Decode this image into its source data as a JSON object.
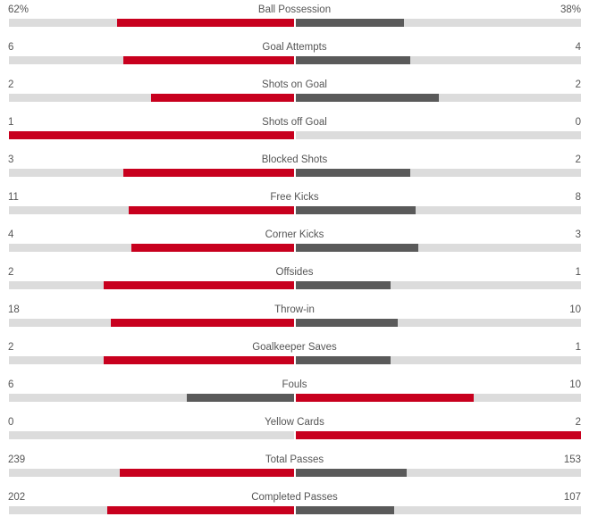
{
  "colors": {
    "leader": "#c8001e",
    "trailer": "#5a5a5a",
    "track": "#dcdcdc"
  },
  "stats": [
    {
      "name": "Ball Possession",
      "home": "62%",
      "away": "38%",
      "home_share": 0.62,
      "away_share": 0.38
    },
    {
      "name": "Goal Attempts",
      "home": "6",
      "away": "4",
      "home_share": 0.6,
      "away_share": 0.4
    },
    {
      "name": "Shots on Goal",
      "home": "2",
      "away": "2",
      "home_share": 0.5,
      "away_share": 0.5
    },
    {
      "name": "Shots off Goal",
      "home": "1",
      "away": "0",
      "home_share": 1.0,
      "away_share": 0.0
    },
    {
      "name": "Blocked Shots",
      "home": "3",
      "away": "2",
      "home_share": 0.6,
      "away_share": 0.4
    },
    {
      "name": "Free Kicks",
      "home": "11",
      "away": "8",
      "home_share": 0.579,
      "away_share": 0.421
    },
    {
      "name": "Corner Kicks",
      "home": "4",
      "away": "3",
      "home_share": 0.571,
      "away_share": 0.429
    },
    {
      "name": "Offsides",
      "home": "2",
      "away": "1",
      "home_share": 0.667,
      "away_share": 0.333
    },
    {
      "name": "Throw-in",
      "home": "18",
      "away": "10",
      "home_share": 0.643,
      "away_share": 0.357
    },
    {
      "name": "Goalkeeper Saves",
      "home": "2",
      "away": "1",
      "home_share": 0.667,
      "away_share": 0.333
    },
    {
      "name": "Fouls",
      "home": "6",
      "away": "10",
      "home_share": 0.375,
      "away_share": 0.625
    },
    {
      "name": "Yellow Cards",
      "home": "0",
      "away": "2",
      "home_share": 0.0,
      "away_share": 1.0
    },
    {
      "name": "Total Passes",
      "home": "239",
      "away": "153",
      "home_share": 0.61,
      "away_share": 0.39
    },
    {
      "name": "Completed Passes",
      "home": "202",
      "away": "107",
      "home_share": 0.654,
      "away_share": 0.346
    }
  ]
}
